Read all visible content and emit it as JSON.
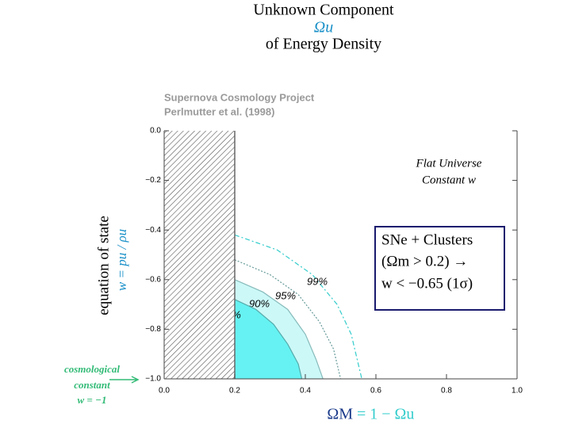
{
  "chart_data": {
    "type": "contour",
    "title": "Unknown Component",
    "title_symbol": "Ωu",
    "title_line3": "of Energy Density",
    "subtitle": "Supernova Cosmology Project",
    "subtitle_line2": "Perlmutter et al. (1998)",
    "annotation": [
      "Flat Universe",
      "Constant w"
    ],
    "box_text": [
      "SNe + Clusters",
      "(Ωm > 0.2) →",
      "w < −0.65 (1σ)"
    ],
    "ylabel": "equation of state",
    "ylabel_formula": "w = pu / ρu",
    "xlabel": "ΩM",
    "xlabel_formula": "= 1 − Ωu",
    "lambda_note": [
      "cosmological",
      "constant",
      "w = −1"
    ],
    "excluded_x": [
      0,
      0.2
    ],
    "xlim": [
      0,
      1
    ],
    "ylim": [
      -1,
      0
    ],
    "xticks": [
      {
        "value": 0,
        "label": "0.0"
      },
      0.2,
      0.4,
      0.6,
      0.8,
      {
        "value": 1,
        "label": "1.0"
      }
    ],
    "yticks": [
      {
        "value": 0,
        "label": "0.0"
      },
      {
        "value": -0.2,
        "label": "−0.2"
      },
      {
        "value": -0.4,
        "label": "−0.4"
      },
      {
        "value": -0.6,
        "label": "−0.6"
      },
      {
        "value": -0.8,
        "label": "−0.8"
      },
      {
        "value": -1,
        "label": "−1.0"
      }
    ],
    "series": [
      {
        "name": "99%",
        "color": "#33cccc",
        "fill": null,
        "x": [
          0.2,
          0.32,
          0.42,
          0.49,
          0.53,
          0.56
        ],
        "y": [
          -0.42,
          -0.48,
          -0.58,
          -0.7,
          -0.82,
          -1.0
        ]
      },
      {
        "name": "95%",
        "color": "#669999",
        "fill": null,
        "x": [
          0.2,
          0.3,
          0.38,
          0.44,
          0.48,
          0.5
        ],
        "y": [
          -0.52,
          -0.58,
          -0.66,
          -0.77,
          -0.88,
          -1.0
        ]
      },
      {
        "name": "90%",
        "color": "#88bbbb",
        "fill": "#ccf8f8",
        "x": [
          0.2,
          0.28,
          0.35,
          0.4,
          0.43,
          0.45
        ],
        "y": [
          -0.6,
          -0.65,
          -0.72,
          -0.82,
          -0.92,
          -1.0
        ]
      },
      {
        "name": "%",
        "color": "#55aaaa",
        "fill": "#66f2f2",
        "x": [
          0.2,
          0.26,
          0.31,
          0.35,
          0.38,
          0.39
        ],
        "y": [
          -0.68,
          -0.72,
          -0.78,
          -0.86,
          -0.94,
          -1.0
        ]
      }
    ]
  }
}
